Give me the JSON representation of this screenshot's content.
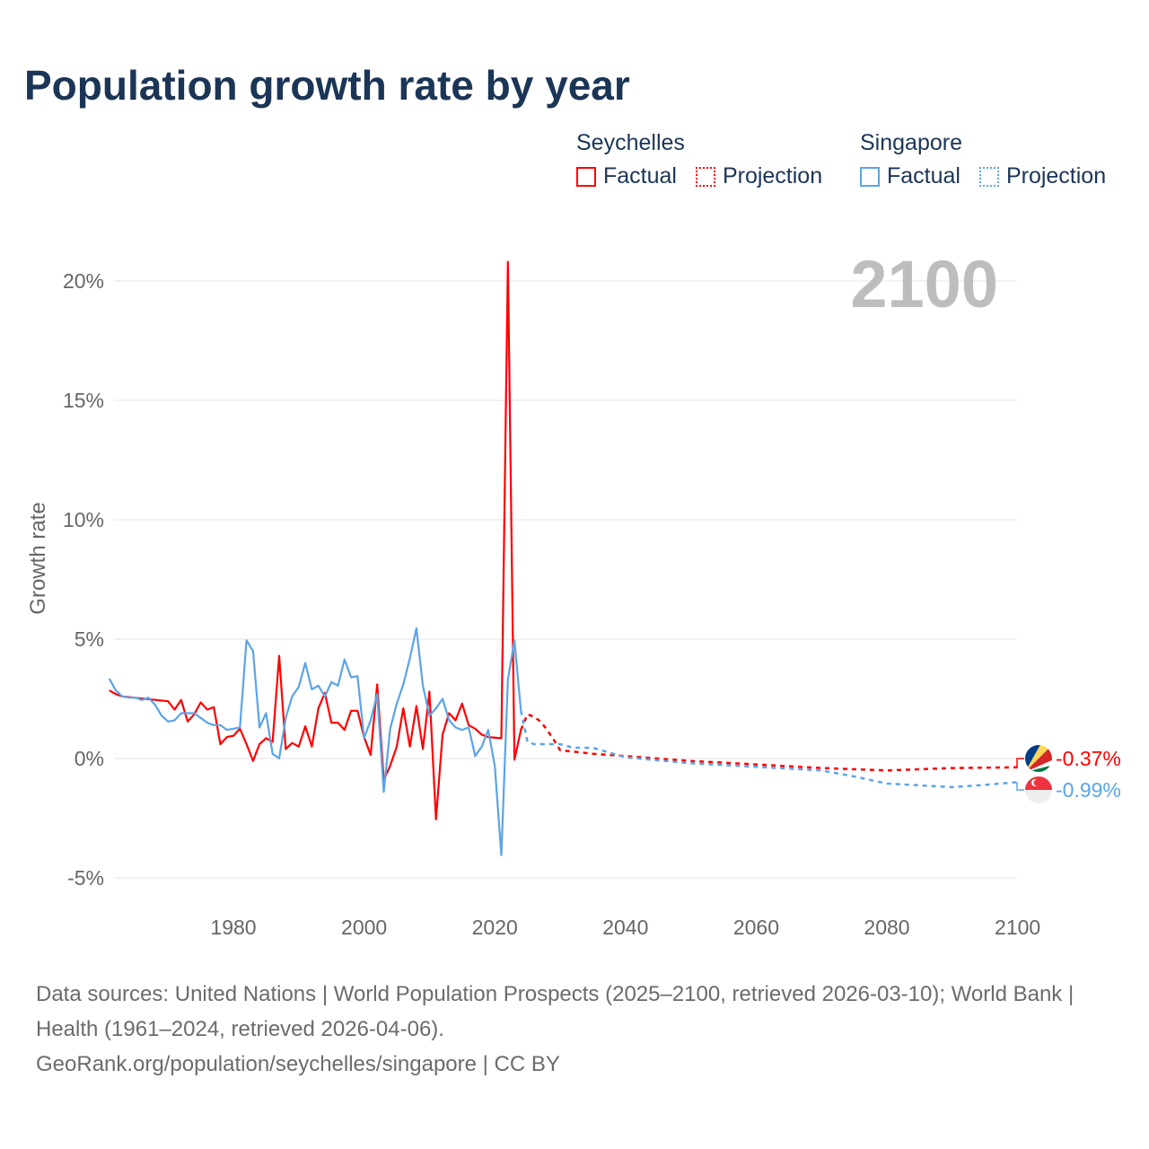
{
  "title": "Population growth rate by year",
  "legend": {
    "groups": [
      {
        "name": "Seychelles",
        "color": "#ff0000",
        "factual": "Factual",
        "projection": "Projection"
      },
      {
        "name": "Singapore",
        "color": "#5ba4e6",
        "factual": "Factual",
        "projection": "Projection"
      }
    ]
  },
  "footer": {
    "sources": "Data sources: United Nations | World Population Prospects (2025–2100, retrieved 2026-03-10); World Bank | Health (1961–2024, retrieved 2026-04-06).",
    "link": "GeoRank.org/population/seychelles/singapore | CC BY"
  },
  "chart_data": {
    "type": "line",
    "title": "Population growth rate by year",
    "ylabel": "Growth rate",
    "xlabel": "",
    "year_label": "2100",
    "xlim": [
      1961,
      2100
    ],
    "ylim": [
      -5,
      21
    ],
    "xticks": [
      1980,
      2000,
      2020,
      2040,
      2060,
      2080,
      2100
    ],
    "yticks": [
      -5,
      0,
      5,
      10,
      15,
      20
    ],
    "ytick_labels": [
      "-5%",
      "0%",
      "5%",
      "10%",
      "15%",
      "20%"
    ],
    "grid": true,
    "series": [
      {
        "name": "Seychelles",
        "color": "#ff0000",
        "end_label": "-0.37%",
        "factual": {
          "x": [
            1961,
            1962,
            1963,
            1970,
            1971,
            1972,
            1973,
            1974,
            1975,
            1976,
            1977,
            1978,
            1979,
            1980,
            1981,
            1982,
            1983,
            1984,
            1985,
            1986,
            1987,
            1988,
            1989,
            1990,
            1991,
            1992,
            1993,
            1994,
            1995,
            1996,
            1997,
            1998,
            1999,
            2000,
            2001,
            2002,
            2003,
            2004,
            2005,
            2006,
            2007,
            2008,
            2009,
            2010,
            2011,
            2012,
            2013,
            2014,
            2015,
            2016,
            2017,
            2018,
            2019,
            2021,
            2022,
            2023,
            2024
          ],
          "y": [
            2.85,
            2.7,
            2.6,
            2.4,
            2.05,
            2.45,
            1.55,
            1.85,
            2.35,
            2.05,
            2.15,
            0.6,
            0.9,
            0.95,
            1.25,
            0.6,
            -0.1,
            0.6,
            0.85,
            0.7,
            4.3,
            0.4,
            0.65,
            0.5,
            1.35,
            0.5,
            2.1,
            2.75,
            1.5,
            1.5,
            1.2,
            2.0,
            2.0,
            0.9,
            0.15,
            3.1,
            -0.9,
            -0.3,
            0.5,
            2.1,
            0.5,
            2.2,
            0.4,
            2.8,
            -2.55,
            1.0,
            1.9,
            1.6,
            2.3,
            1.4,
            1.25,
            1.0,
            0.9,
            0.85,
            20.8,
            -0.05,
            1.2
          ]
        },
        "projection": {
          "x": [
            2024,
            2025,
            2026,
            2027,
            2028,
            2029,
            2030,
            2035,
            2040,
            2050,
            2060,
            2070,
            2080,
            2090,
            2100
          ],
          "y": [
            1.2,
            1.85,
            1.75,
            1.55,
            1.2,
            0.8,
            0.35,
            0.2,
            0.1,
            -0.1,
            -0.25,
            -0.4,
            -0.5,
            -0.4,
            -0.37
          ]
        }
      },
      {
        "name": "Singapore",
        "color": "#5ba4e6",
        "end_label": "-0.99%",
        "factual": {
          "x": [
            1961,
            1962,
            1963,
            1964,
            1965,
            1966,
            1967,
            1968,
            1969,
            1970,
            1971,
            1972,
            1973,
            1974,
            1975,
            1976,
            1977,
            1978,
            1979,
            1980,
            1981,
            1982,
            1983,
            1984,
            1985,
            1986,
            1987,
            1988,
            1989,
            1990,
            1991,
            1992,
            1993,
            1994,
            1995,
            1996,
            1997,
            1998,
            1999,
            2000,
            2001,
            2002,
            2003,
            2004,
            2005,
            2006,
            2007,
            2008,
            2009,
            2010,
            2011,
            2012,
            2013,
            2014,
            2015,
            2016,
            2017,
            2018,
            2019,
            2020,
            2021,
            2022,
            2023,
            2024
          ],
          "y": [
            3.35,
            2.85,
            2.6,
            2.55,
            2.55,
            2.45,
            2.55,
            2.25,
            1.8,
            1.55,
            1.6,
            1.9,
            1.9,
            1.9,
            1.7,
            1.5,
            1.4,
            1.4,
            1.2,
            1.25,
            1.3,
            4.95,
            4.5,
            1.3,
            1.9,
            0.2,
            0.0,
            1.7,
            2.6,
            3.0,
            4.0,
            2.9,
            3.05,
            2.6,
            3.2,
            3.05,
            4.15,
            3.4,
            3.45,
            0.85,
            1.6,
            2.7,
            -1.4,
            1.25,
            2.3,
            3.1,
            4.2,
            5.45,
            3.05,
            1.8,
            2.1,
            2.5,
            1.6,
            1.3,
            1.2,
            1.3,
            0.1,
            0.5,
            1.2,
            -0.3,
            -4.05,
            3.3,
            4.95,
            2.0
          ]
        },
        "projection": {
          "x": [
            2024,
            2025,
            2026,
            2030,
            2032,
            2035,
            2040,
            2050,
            2060,
            2070,
            2075,
            2080,
            2090,
            2095,
            2100
          ],
          "y": [
            2.0,
            0.7,
            0.6,
            0.6,
            0.45,
            0.45,
            0.05,
            -0.2,
            -0.35,
            -0.5,
            -0.75,
            -1.05,
            -1.2,
            -1.1,
            -0.99
          ]
        }
      }
    ]
  }
}
